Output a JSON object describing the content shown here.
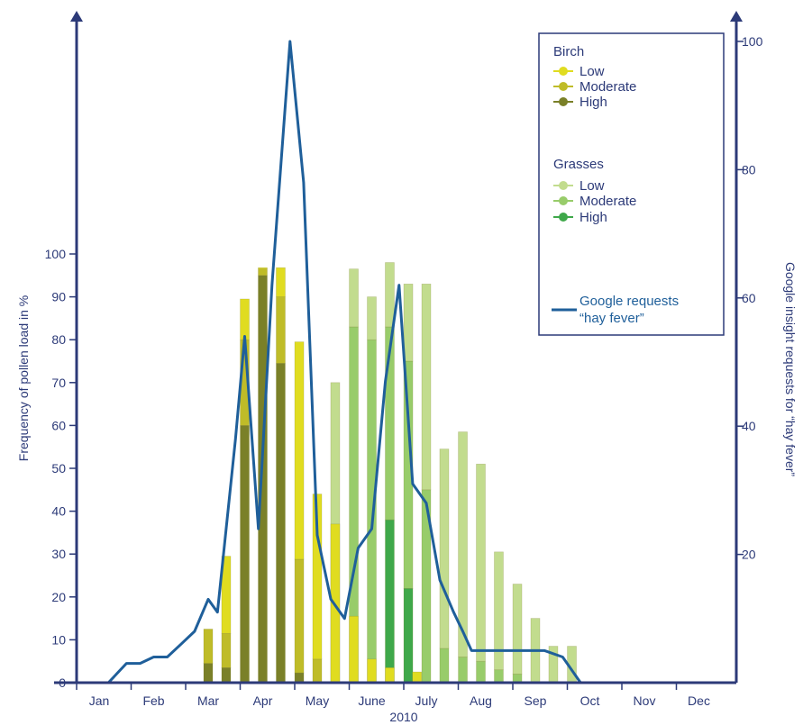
{
  "chart_data": {
    "type": "bar",
    "x_axis": {
      "title": "2010",
      "months": [
        "Jan",
        "Feb",
        "Mar",
        "Apr",
        "May",
        "June",
        "July",
        "Aug",
        "Sep",
        "Oct",
        "Nov",
        "Dec"
      ],
      "range": [
        0,
        12
      ]
    },
    "y_left": {
      "title": "Frequency of pollen load in %",
      "range": [
        0,
        100
      ],
      "ticks": [
        0,
        10,
        20,
        30,
        40,
        50,
        60,
        70,
        80,
        90,
        100
      ]
    },
    "y_right": {
      "title": "Google insight requests for “hay fever”",
      "range": [
        0,
        100
      ],
      "ticks": [
        20,
        40,
        60,
        80,
        100
      ]
    },
    "legend": {
      "position": "top-right",
      "birch_heading": "Birch",
      "grasses_heading": "Grasses",
      "levels": [
        "Low",
        "Moderate",
        "High"
      ],
      "line_label_1": "Google requests",
      "line_label_2": "“hay fever”"
    },
    "colors": {
      "birch": [
        "#e0dc20",
        "#bfbc28",
        "#7a8028"
      ],
      "grasses": [
        "#c2dc8e",
        "#98cc6a",
        "#3fa84a"
      ],
      "line": "#1f5f9a",
      "axis": "#2c3a78"
    },
    "birch_bars": [
      {
        "x": 2.0,
        "low": 4.5,
        "moderate": 8,
        "high": 12.5
      },
      {
        "x": 2.33,
        "low": 3.5,
        "moderate": 8,
        "high": 29.5
      },
      {
        "x": 2.67,
        "low": 60,
        "moderate": 20,
        "high": 89.5
      },
      {
        "x": 3.0,
        "low": 95,
        "moderate": 1.5,
        "high": 96.8
      },
      {
        "x": 3.33,
        "low": 74.5,
        "moderate": 15.5,
        "high": 96.8
      },
      {
        "x": 3.67,
        "low": 2.3,
        "moderate": 26.5,
        "high": 79.5
      },
      {
        "x": 4.0,
        "low": 0,
        "moderate": 5.5,
        "high": 44
      },
      {
        "x": 4.33,
        "low": 0,
        "moderate": 0,
        "high": 37
      },
      {
        "x": 4.67,
        "low": 0,
        "moderate": 0,
        "high": 15.5
      },
      {
        "x": 5.0,
        "low": 0,
        "moderate": 0,
        "high": 5.5
      },
      {
        "x": 5.33,
        "low": 0,
        "moderate": 0,
        "high": 3.5
      },
      {
        "x": 5.83,
        "low": 0,
        "moderate": 0,
        "high": 2.5
      }
    ],
    "grass_bars": [
      {
        "x": 4.33,
        "low": 0,
        "moderate": 0,
        "high": 70
      },
      {
        "x": 4.67,
        "low": 0,
        "moderate": 83,
        "high": 96.5
      },
      {
        "x": 5.0,
        "low": 0,
        "moderate": 80,
        "high": 90
      },
      {
        "x": 5.33,
        "low": 38,
        "moderate": 45,
        "high": 98
      },
      {
        "x": 5.67,
        "low": 22,
        "moderate": 53,
        "high": 93
      },
      {
        "x": 6.0,
        "low": 0,
        "moderate": 45,
        "high": 93
      },
      {
        "x": 6.33,
        "low": 0,
        "moderate": 8,
        "high": 54.5
      },
      {
        "x": 6.67,
        "low": 0,
        "moderate": 6,
        "high": 58.5
      },
      {
        "x": 7.0,
        "low": 0,
        "moderate": 5,
        "high": 51
      },
      {
        "x": 7.33,
        "low": 0,
        "moderate": 3,
        "high": 30.5
      },
      {
        "x": 7.67,
        "low": 0,
        "moderate": 2,
        "high": 23
      },
      {
        "x": 8.0,
        "low": 0,
        "moderate": 0,
        "high": 15
      },
      {
        "x": 8.33,
        "low": 0,
        "moderate": 0,
        "high": 8.5
      },
      {
        "x": 8.67,
        "low": 0,
        "moderate": 0,
        "high": 8.5
      }
    ],
    "line_series": {
      "x": [
        0.0,
        0.17,
        0.5,
        0.75,
        1.0,
        1.25,
        1.5,
        1.75,
        2.0,
        2.17,
        2.5,
        2.67,
        2.92,
        3.17,
        3.5,
        3.75,
        4.0,
        4.25,
        4.5,
        4.75,
        5.0,
        5.25,
        5.5,
        5.75,
        6.0,
        6.25,
        6.5,
        6.67,
        6.83,
        7.17,
        7.5,
        7.83,
        8.17,
        8.5,
        8.83
      ],
      "y": [
        0,
        0,
        3,
        3,
        4,
        4,
        6,
        8,
        13,
        11,
        38,
        54,
        24,
        62,
        100,
        78,
        23,
        13,
        10,
        21,
        24,
        47,
        62,
        31,
        28,
        16,
        11,
        8,
        5,
        5,
        5,
        5,
        5,
        4,
        0
      ]
    }
  }
}
